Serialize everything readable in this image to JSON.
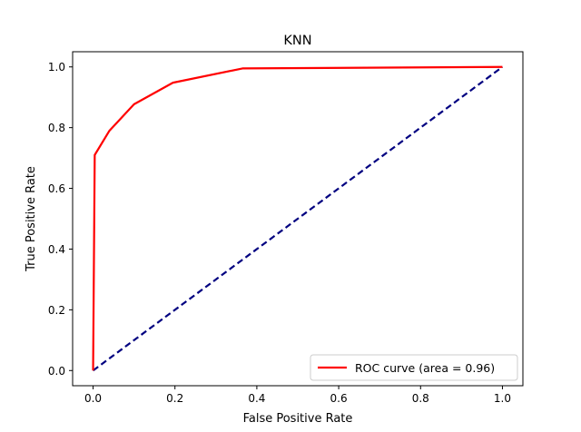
{
  "chart_data": {
    "type": "line",
    "title": "KNN",
    "xlabel": "False Positive Rate",
    "ylabel": "True Positive Rate",
    "xlim": [
      -0.05,
      1.05
    ],
    "ylim": [
      -0.05,
      1.05
    ],
    "x_ticks": [
      0.0,
      0.2,
      0.4,
      0.6,
      0.8,
      1.0
    ],
    "y_ticks": [
      0.0,
      0.2,
      0.4,
      0.6,
      0.8,
      1.0
    ],
    "x_tick_labels": [
      "0.0",
      "0.2",
      "0.4",
      "0.6",
      "0.8",
      "1.0"
    ],
    "y_tick_labels": [
      "0.0",
      "0.2",
      "0.4",
      "0.6",
      "0.8",
      "1.0"
    ],
    "grid": false,
    "legend_position": "lower right",
    "series": [
      {
        "name": "ROC curve (area = 0.96)",
        "color": "#ff0000",
        "line_style": "solid",
        "x": [
          0.0,
          0.0,
          0.004,
          0.04,
          0.1,
          0.195,
          0.365,
          1.0
        ],
        "y": [
          0.0,
          0.0,
          0.71,
          0.79,
          0.877,
          0.948,
          0.995,
          1.0
        ]
      },
      {
        "color": "#000080",
        "line_style": "dashed",
        "x": [
          0.0,
          1.0
        ],
        "y": [
          0.0,
          1.0
        ]
      }
    ]
  }
}
